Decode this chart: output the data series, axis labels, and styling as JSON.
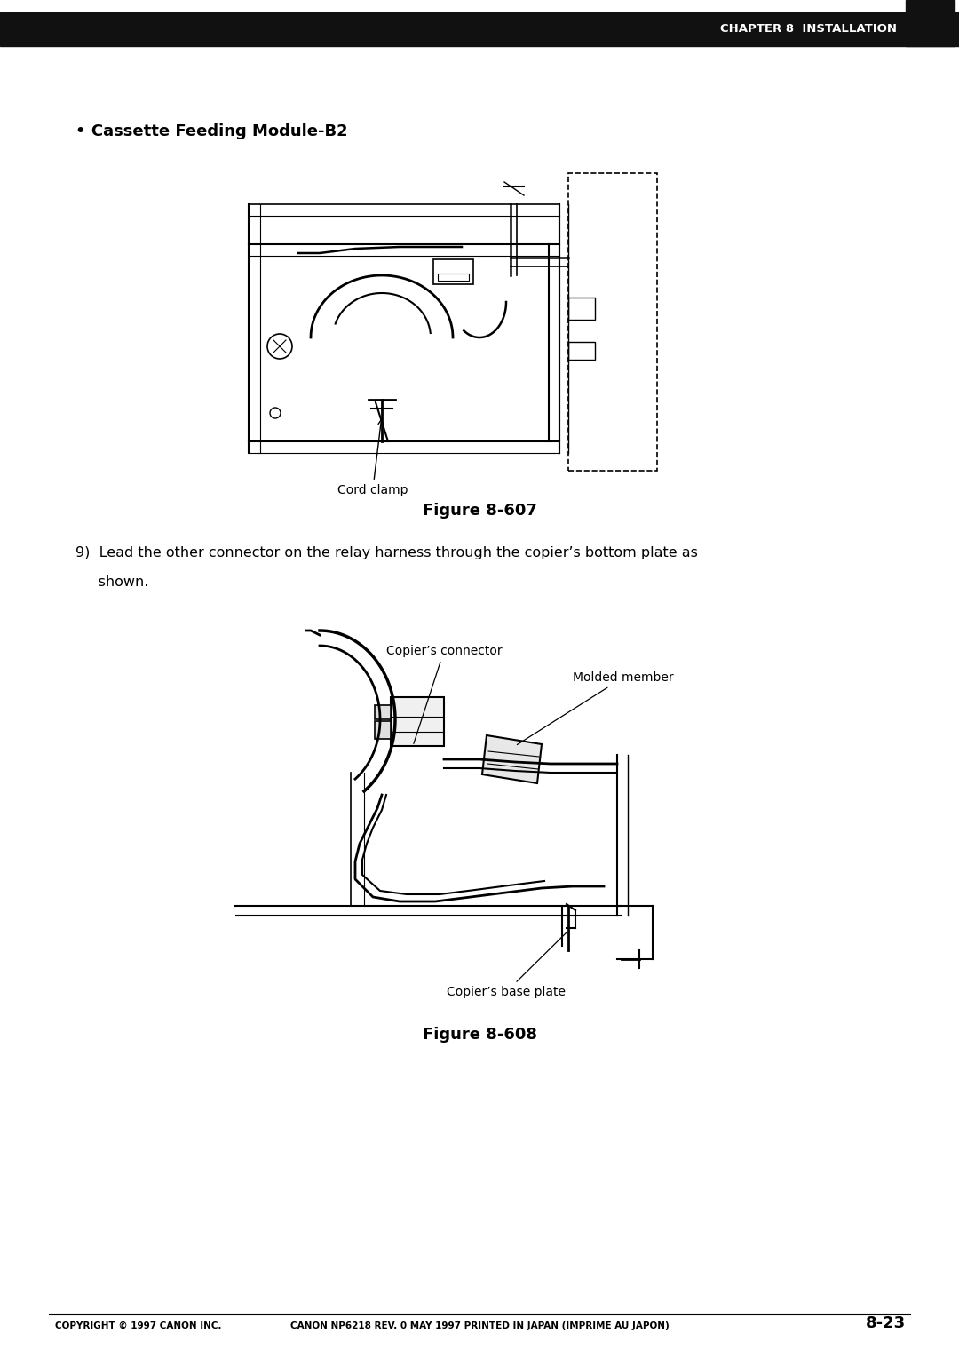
{
  "page_width": 10.8,
  "page_height": 15.28,
  "bg_color": "#ffffff",
  "header_bar_color": "#111111",
  "header_text": "CHAPTER 8  INSTALLATION",
  "header_text_color": "#ffffff",
  "bullet_text": "• Cassette Feeding Module-B2",
  "figure607_label": "Figure 8-607",
  "cord_clamp_label": "Cord clamp",
  "step9_line1": "9)  Lead the other connector on the relay harness through the copier’s bottom plate as",
  "step9_line2": "     shown.",
  "copiers_connector_label": "Copier’s connector",
  "molded_member_label": "Molded member",
  "copiers_base_plate_label": "Copier’s base plate",
  "figure608_label": "Figure 8-608",
  "footer_left": "COPYRIGHT © 1997 CANON INC.",
  "footer_center": "CANON NP6218 REV. 0 MAY 1997 PRINTED IN JAPAN (IMPRIME AU JAPON)",
  "footer_right": "8-23",
  "text_color": "#000000",
  "line_color": "#000000"
}
